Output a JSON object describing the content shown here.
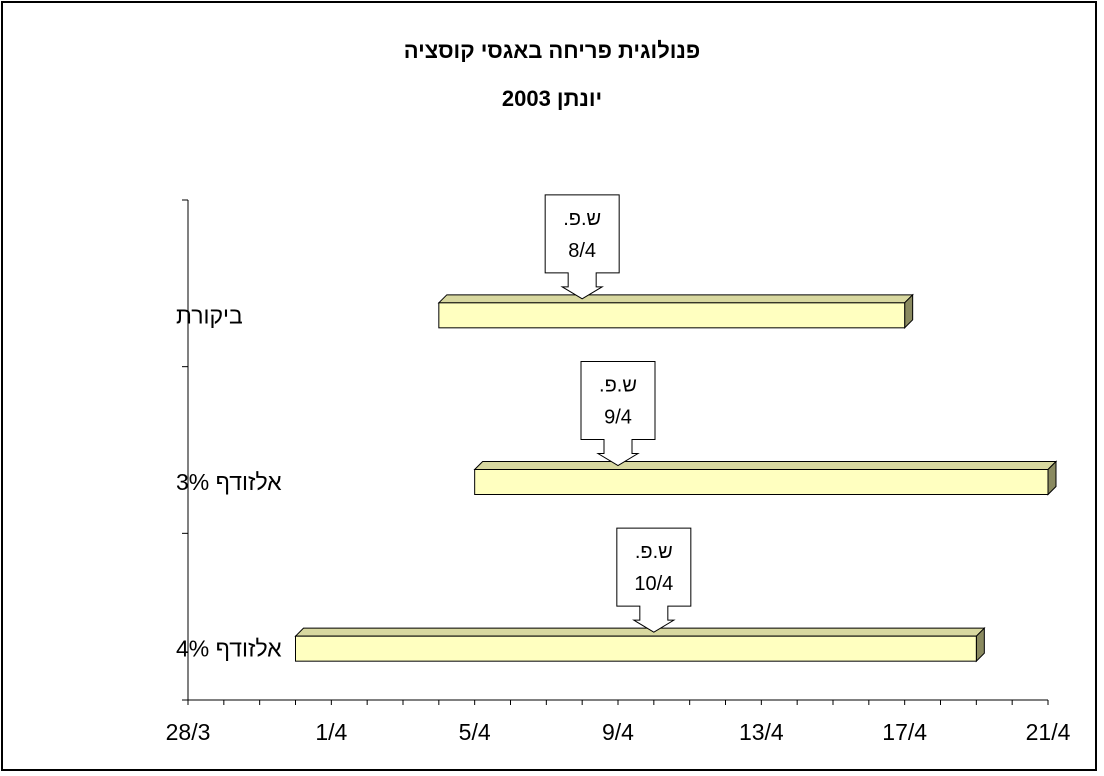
{
  "chart_data": {
    "type": "bar",
    "orientation": "horizontal-floating",
    "title": "פנולוגית פריחה באגסי קוסציה",
    "subtitle": "יונתן 2003",
    "x_ticks": [
      "28/3",
      "1/4",
      "5/4",
      "9/4",
      "13/4",
      "17/4",
      "21/4"
    ],
    "xlim": [
      "2003-03-28",
      "2003-04-21"
    ],
    "grid": false,
    "series": [
      {
        "category": "ביקורת",
        "start": "2003-04-04",
        "end": "2003-04-17",
        "callout": [
          "ש.פ.",
          "8/4"
        ],
        "peak": "2003-04-08"
      },
      {
        "category": "אלזודף 3%",
        "start": "2003-04-05",
        "end": "2003-04-21",
        "callout": [
          "ש.פ.",
          "9/4"
        ],
        "peak": "2003-04-09"
      },
      {
        "category": "אלזודף 4%",
        "start": "2003-03-31",
        "end": "2003-04-19",
        "callout": [
          "ש.פ.",
          "10/4"
        ],
        "peak": "2003-04-10"
      }
    ],
    "colors": {
      "bar_face": "#ffffc0",
      "bar_top": "#d8d8a0",
      "bar_side": "#8a8a60",
      "axis": "#000000"
    }
  }
}
